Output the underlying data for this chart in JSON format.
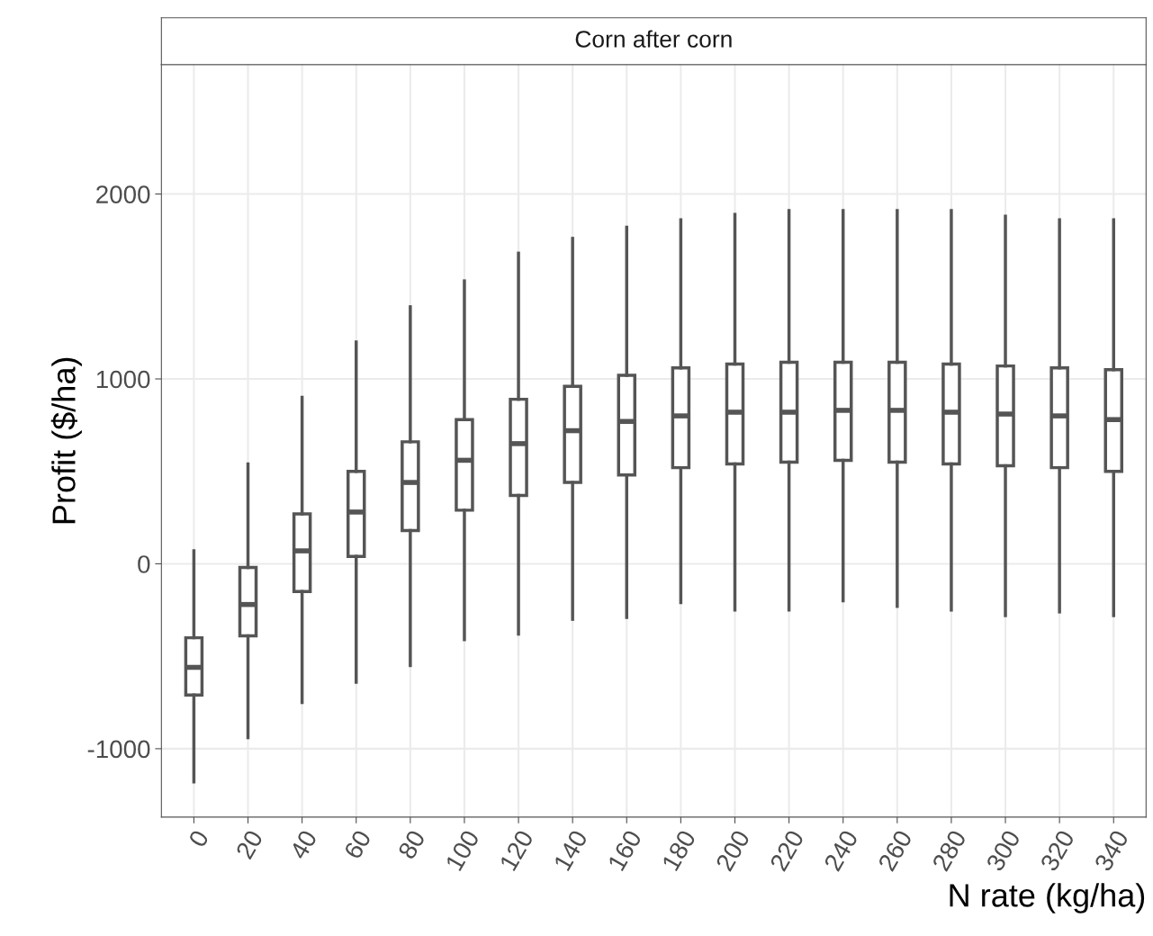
{
  "chart_data": {
    "type": "box",
    "title": "Corn after corn",
    "xlabel": "N rate (kg/ha)",
    "ylabel": "Profit ($/ha)",
    "categories": [
      "0",
      "20",
      "40",
      "60",
      "80",
      "100",
      "120",
      "140",
      "160",
      "180",
      "200",
      "220",
      "240",
      "260",
      "280",
      "300",
      "320",
      "340"
    ],
    "boxes": [
      {
        "low": -1180,
        "q1": -710,
        "median": -560,
        "q3": -400,
        "high": 70
      },
      {
        "low": -940,
        "q1": -390,
        "median": -220,
        "q3": -20,
        "high": 540
      },
      {
        "low": -750,
        "q1": -150,
        "median": 70,
        "q3": 270,
        "high": 900
      },
      {
        "low": -640,
        "q1": 40,
        "median": 280,
        "q3": 500,
        "high": 1200
      },
      {
        "low": -550,
        "q1": 180,
        "median": 440,
        "q3": 660,
        "high": 1390
      },
      {
        "low": -410,
        "q1": 290,
        "median": 560,
        "q3": 780,
        "high": 1530
      },
      {
        "low": -380,
        "q1": 370,
        "median": 650,
        "q3": 890,
        "high": 1680
      },
      {
        "low": -300,
        "q1": 440,
        "median": 720,
        "q3": 960,
        "high": 1760
      },
      {
        "low": -290,
        "q1": 480,
        "median": 770,
        "q3": 1020,
        "high": 1820
      },
      {
        "low": -210,
        "q1": 520,
        "median": 800,
        "q3": 1060,
        "high": 1860
      },
      {
        "low": -250,
        "q1": 540,
        "median": 820,
        "q3": 1080,
        "high": 1890
      },
      {
        "low": -250,
        "q1": 550,
        "median": 820,
        "q3": 1090,
        "high": 1910
      },
      {
        "low": -200,
        "q1": 560,
        "median": 830,
        "q3": 1090,
        "high": 1910
      },
      {
        "low": -230,
        "q1": 550,
        "median": 830,
        "q3": 1090,
        "high": 1910
      },
      {
        "low": -250,
        "q1": 540,
        "median": 820,
        "q3": 1080,
        "high": 1910
      },
      {
        "low": -280,
        "q1": 530,
        "median": 810,
        "q3": 1070,
        "high": 1880
      },
      {
        "low": -260,
        "q1": 520,
        "median": 800,
        "q3": 1060,
        "high": 1860
      },
      {
        "low": -280,
        "q1": 500,
        "median": 780,
        "q3": 1050,
        "high": 1860
      }
    ],
    "color": "#555555",
    "ylim": [
      -1370,
      2700
    ],
    "yticks": [
      {
        "value": -1000,
        "label": "-1000"
      },
      0,
      1000,
      2000
    ],
    "grid": true
  }
}
